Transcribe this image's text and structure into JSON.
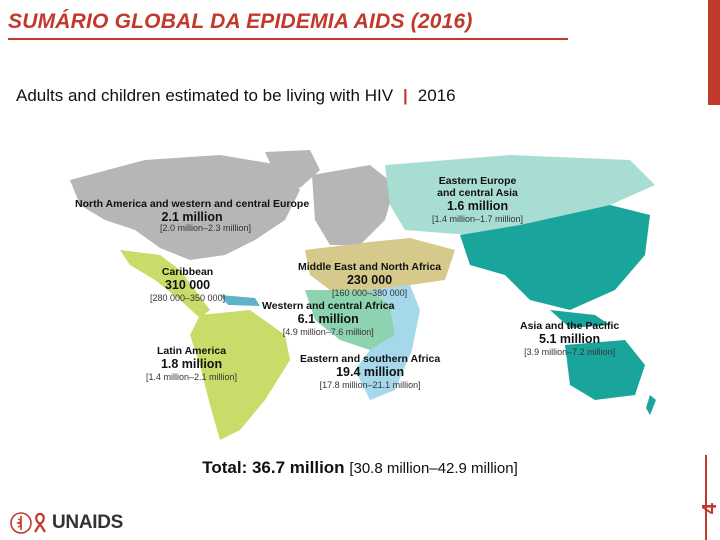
{
  "slide": {
    "title": "SUMÁRIO GLOBAL DA EPIDEMIA AIDS (2016)",
    "subtitle_text": "Adults and children estimated to be living with HIV",
    "subtitle_separator": "|",
    "subtitle_year": "2016",
    "total_label": "Total: 36.7 million",
    "total_range": "[30.8 million–42.9 million]",
    "logo_text": "UNAIDS",
    "slide_number": "4"
  },
  "colors": {
    "accent": "#c0392b",
    "north_america_europe": "#b6b6b6",
    "eastern_europe": "#a8ddd4",
    "caribbean": "#5fb3c9",
    "latin_america": "#c7dc69",
    "middle_east": "#d6c98c",
    "western_africa": "#8ed3b0",
    "eastern_southern_africa": "#a4d8ea",
    "asia_pacific": "#1aa59c"
  },
  "regions": [
    {
      "key": "north_america_europe",
      "name": "North America and western and central Europe",
      "value": "2.1 million",
      "range": "[2.0 million–2.3 million]"
    },
    {
      "key": "eastern_europe",
      "name": "Eastern Europe\nand central Asia",
      "value": "1.6 million",
      "range": "[1.4 million–1.7 million]"
    },
    {
      "key": "caribbean",
      "name": "Caribbean",
      "value": "310 000",
      "range": "[280 000–350 000]"
    },
    {
      "key": "middle_east",
      "name": "Middle East and North Africa",
      "value": "230 000",
      "range": "[160 000–380 000]"
    },
    {
      "key": "western_africa",
      "name": "Western and central Africa",
      "value": "6.1 million",
      "range": "[4.9 million–7.6 million]"
    },
    {
      "key": "asia_pacific",
      "name": "Asia and the Pacific",
      "value": "5.1 million",
      "range": "[3.9 million–7.2 million]"
    },
    {
      "key": "latin_america",
      "name": "Latin America",
      "value": "1.8 million",
      "range": "[1.4 million–2.1 million]"
    },
    {
      "key": "eastern_southern_africa",
      "name": "Eastern and southern Africa",
      "value": "19.4 million",
      "range": "[17.8 million–21.1 million]"
    }
  ]
}
